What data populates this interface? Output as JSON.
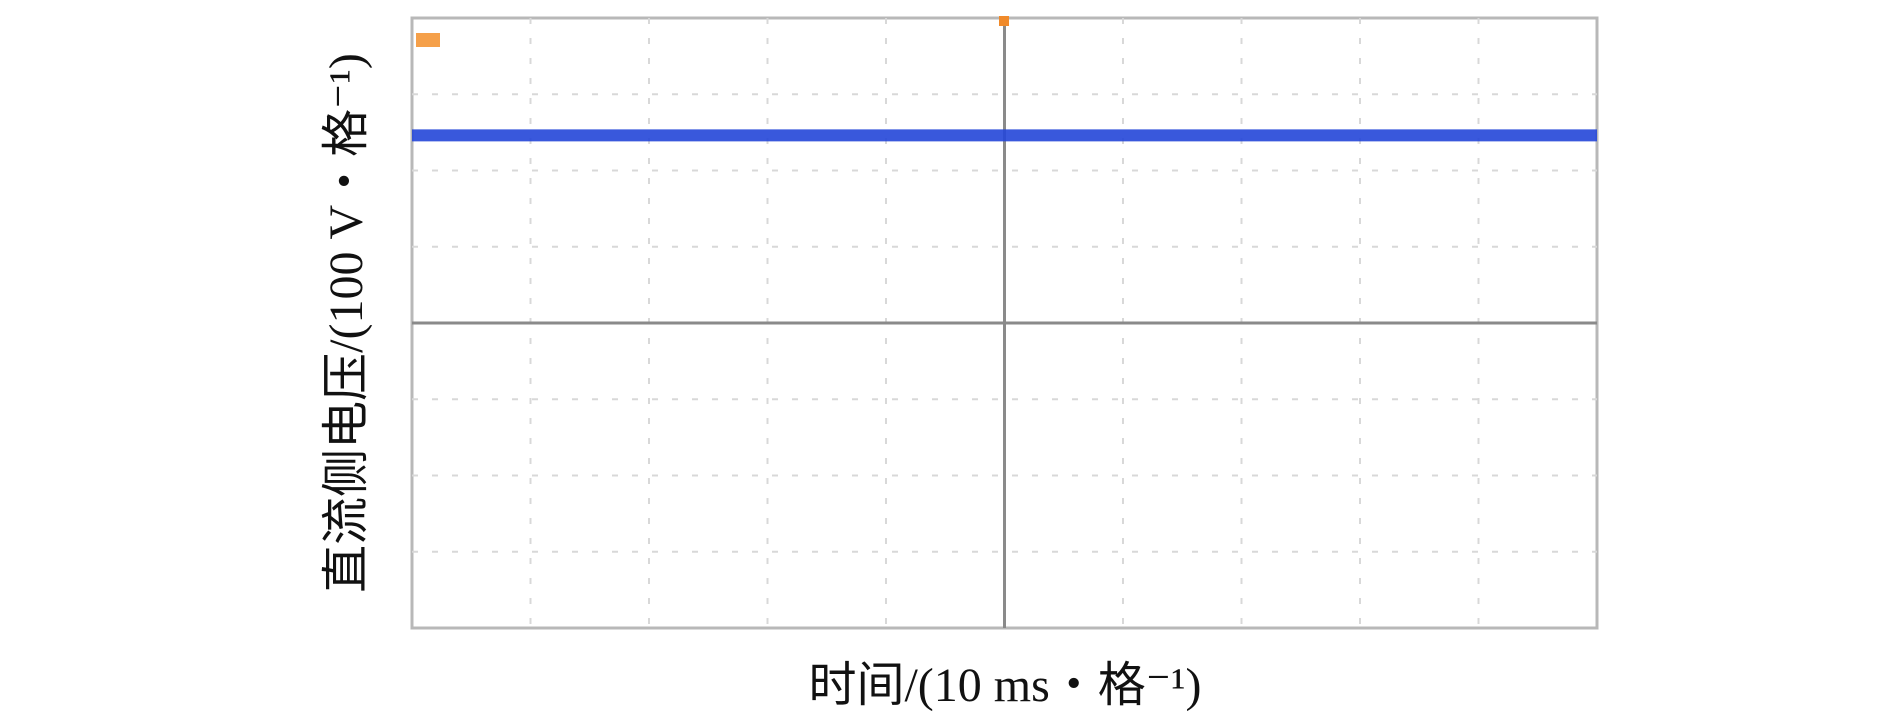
{
  "chart_data": {
    "type": "line",
    "xlabel": "时间/(10 ms・格⁻¹)",
    "ylabel": "直流侧电压/(100 V・格⁻¹)",
    "x": [
      0,
      10
    ],
    "xlim": [
      0,
      10
    ],
    "ylim": [
      -4,
      4
    ],
    "grid": true,
    "series": [
      {
        "color": "#2346d8",
        "values": [
          2.46,
          2.46
        ]
      }
    ]
  }
}
